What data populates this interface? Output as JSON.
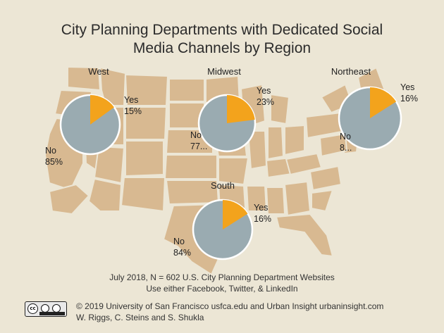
{
  "title_lines": [
    "City Planning Departments with Dedicated Social",
    "Media Channels by Region"
  ],
  "caption_lines": [
    "July 2018, N = 602 U.S. City Planning Department Websites",
    "Use either Facebook, Twitter, & LinkedIn"
  ],
  "credit_lines": [
    "© 2019 University of San Francisco usfca.edu and Urban Insight urbaninsight.com",
    "W. Riggs, C. Steins and S. Shukla"
  ],
  "license_badge": {
    "label": "cc",
    "icon": "creative-commons-by-sa-badge"
  },
  "colors": {
    "background": "#ece6d5",
    "map": "#d8b991",
    "no": "#9aabb1",
    "yes": "#f3a31c",
    "text": "#2b2b2b"
  },
  "chart_data": [
    {
      "type": "pie",
      "title": "West",
      "categories": [
        "Yes",
        "No"
      ],
      "values": [
        15,
        85
      ],
      "labels": [
        "Yes\n15%",
        "No\n85%"
      ]
    },
    {
      "type": "pie",
      "title": "Midwest",
      "categories": [
        "Yes",
        "No"
      ],
      "values": [
        23,
        77
      ],
      "labels": [
        "Yes\n23%",
        "No\n77..."
      ]
    },
    {
      "type": "pie",
      "title": "Northeast",
      "categories": [
        "Yes",
        "No"
      ],
      "values": [
        16,
        84
      ],
      "labels": [
        "Yes\n16%",
        "No\n8..."
      ]
    },
    {
      "type": "pie",
      "title": "South",
      "categories": [
        "Yes",
        "No"
      ],
      "values": [
        16,
        84
      ],
      "labels": [
        "Yes\n16%",
        "No\n84%"
      ]
    }
  ]
}
